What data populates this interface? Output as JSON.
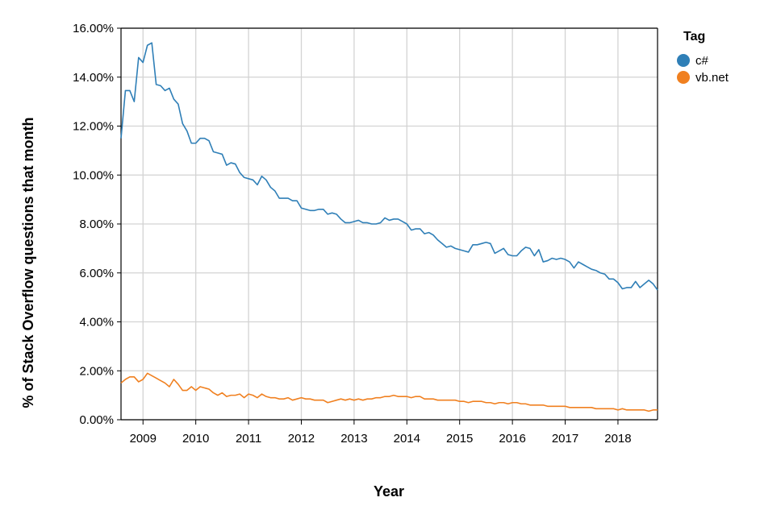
{
  "chart_data": {
    "type": "line",
    "xlabel": "Year",
    "ylabel": "% of Stack Overflow questions that month",
    "x_ticks": [
      "2009",
      "2010",
      "2011",
      "2012",
      "2013",
      "2014",
      "2015",
      "2016",
      "2017",
      "2018"
    ],
    "y_ticks": [
      "0.00%",
      "2.00%",
      "4.00%",
      "6.00%",
      "8.00%",
      "10.00%",
      "12.00%",
      "14.00%",
      "16.00%"
    ],
    "xlim": [
      "2008-08",
      "2018-10"
    ],
    "ylim": [
      0,
      16
    ],
    "grid": true,
    "legend": {
      "title": "Tag",
      "placement": "top-right",
      "entries": [
        {
          "label": "c#",
          "color": "#2f7fb7"
        },
        {
          "label": "vb.net",
          "color": "#f08020"
        }
      ]
    },
    "series": [
      {
        "name": "c#",
        "color": "#2f7fb7",
        "points": [
          [
            "2008-08",
            11.5
          ],
          [
            "2008-09",
            13.45
          ],
          [
            "2008-10",
            13.45
          ],
          [
            "2008-11",
            13.0
          ],
          [
            "2008-12",
            14.8
          ],
          [
            "2009-01",
            14.6
          ],
          [
            "2009-02",
            15.3
          ],
          [
            "2009-03",
            15.4
          ],
          [
            "2009-04",
            13.7
          ],
          [
            "2009-05",
            13.65
          ],
          [
            "2009-06",
            13.45
          ],
          [
            "2009-07",
            13.55
          ],
          [
            "2009-08",
            13.1
          ],
          [
            "2009-09",
            12.9
          ],
          [
            "2009-10",
            12.1
          ],
          [
            "2009-11",
            11.8
          ],
          [
            "2009-12",
            11.3
          ],
          [
            "2010-01",
            11.3
          ],
          [
            "2010-02",
            11.5
          ],
          [
            "2010-03",
            11.5
          ],
          [
            "2010-04",
            11.4
          ],
          [
            "2010-05",
            10.95
          ],
          [
            "2010-06",
            10.9
          ],
          [
            "2010-07",
            10.85
          ],
          [
            "2010-08",
            10.4
          ],
          [
            "2010-09",
            10.5
          ],
          [
            "2010-10",
            10.45
          ],
          [
            "2010-11",
            10.1
          ],
          [
            "2010-12",
            9.9
          ],
          [
            "2011-01",
            9.85
          ],
          [
            "2011-02",
            9.8
          ],
          [
            "2011-03",
            9.6
          ],
          [
            "2011-04",
            9.95
          ],
          [
            "2011-05",
            9.8
          ],
          [
            "2011-06",
            9.5
          ],
          [
            "2011-07",
            9.35
          ],
          [
            "2011-08",
            9.05
          ],
          [
            "2011-09",
            9.05
          ],
          [
            "2011-10",
            9.05
          ],
          [
            "2011-11",
            8.95
          ],
          [
            "2011-12",
            8.95
          ],
          [
            "2012-01",
            8.65
          ],
          [
            "2012-02",
            8.6
          ],
          [
            "2012-03",
            8.55
          ],
          [
            "2012-04",
            8.55
          ],
          [
            "2012-05",
            8.6
          ],
          [
            "2012-06",
            8.6
          ],
          [
            "2012-07",
            8.4
          ],
          [
            "2012-08",
            8.45
          ],
          [
            "2012-09",
            8.4
          ],
          [
            "2012-10",
            8.2
          ],
          [
            "2012-11",
            8.05
          ],
          [
            "2012-12",
            8.05
          ],
          [
            "2013-01",
            8.1
          ],
          [
            "2013-02",
            8.15
          ],
          [
            "2013-03",
            8.05
          ],
          [
            "2013-04",
            8.05
          ],
          [
            "2013-05",
            8.0
          ],
          [
            "2013-06",
            8.0
          ],
          [
            "2013-07",
            8.05
          ],
          [
            "2013-08",
            8.25
          ],
          [
            "2013-09",
            8.15
          ],
          [
            "2013-10",
            8.2
          ],
          [
            "2013-11",
            8.2
          ],
          [
            "2013-12",
            8.1
          ],
          [
            "2014-01",
            8.0
          ],
          [
            "2014-02",
            7.75
          ],
          [
            "2014-03",
            7.8
          ],
          [
            "2014-04",
            7.8
          ],
          [
            "2014-05",
            7.6
          ],
          [
            "2014-06",
            7.65
          ],
          [
            "2014-07",
            7.55
          ],
          [
            "2014-08",
            7.35
          ],
          [
            "2014-09",
            7.2
          ],
          [
            "2014-10",
            7.05
          ],
          [
            "2014-11",
            7.1
          ],
          [
            "2014-12",
            7.0
          ],
          [
            "2015-01",
            6.95
          ],
          [
            "2015-02",
            6.9
          ],
          [
            "2015-03",
            6.85
          ],
          [
            "2015-04",
            7.15
          ],
          [
            "2015-05",
            7.15
          ],
          [
            "2015-06",
            7.2
          ],
          [
            "2015-07",
            7.25
          ],
          [
            "2015-08",
            7.2
          ],
          [
            "2015-09",
            6.8
          ],
          [
            "2015-10",
            6.9
          ],
          [
            "2015-11",
            7.0
          ],
          [
            "2015-12",
            6.75
          ],
          [
            "2016-01",
            6.7
          ],
          [
            "2016-02",
            6.7
          ],
          [
            "2016-03",
            6.9
          ],
          [
            "2016-04",
            7.05
          ],
          [
            "2016-05",
            7.0
          ],
          [
            "2016-06",
            6.7
          ],
          [
            "2016-07",
            6.95
          ],
          [
            "2016-08",
            6.45
          ],
          [
            "2016-09",
            6.5
          ],
          [
            "2016-10",
            6.6
          ],
          [
            "2016-11",
            6.55
          ],
          [
            "2016-12",
            6.6
          ],
          [
            "2017-01",
            6.55
          ],
          [
            "2017-02",
            6.45
          ],
          [
            "2017-03",
            6.2
          ],
          [
            "2017-04",
            6.45
          ],
          [
            "2017-05",
            6.35
          ],
          [
            "2017-06",
            6.25
          ],
          [
            "2017-07",
            6.15
          ],
          [
            "2017-08",
            6.1
          ],
          [
            "2017-09",
            6.0
          ],
          [
            "2017-10",
            5.95
          ],
          [
            "2017-11",
            5.75
          ],
          [
            "2017-12",
            5.75
          ],
          [
            "2018-01",
            5.6
          ],
          [
            "2018-02",
            5.35
          ],
          [
            "2018-03",
            5.4
          ],
          [
            "2018-04",
            5.4
          ],
          [
            "2018-05",
            5.65
          ],
          [
            "2018-06",
            5.4
          ],
          [
            "2018-07",
            5.55
          ],
          [
            "2018-08",
            5.7
          ],
          [
            "2018-09",
            5.55
          ],
          [
            "2018-10",
            5.3
          ]
        ]
      },
      {
        "name": "vb.net",
        "color": "#f08020",
        "points": [
          [
            "2008-08",
            1.5
          ],
          [
            "2008-09",
            1.65
          ],
          [
            "2008-10",
            1.75
          ],
          [
            "2008-11",
            1.75
          ],
          [
            "2008-12",
            1.55
          ],
          [
            "2009-01",
            1.65
          ],
          [
            "2009-02",
            1.9
          ],
          [
            "2009-03",
            1.8
          ],
          [
            "2009-04",
            1.7
          ],
          [
            "2009-05",
            1.6
          ],
          [
            "2009-06",
            1.5
          ],
          [
            "2009-07",
            1.35
          ],
          [
            "2009-08",
            1.65
          ],
          [
            "2009-09",
            1.45
          ],
          [
            "2009-10",
            1.2
          ],
          [
            "2009-11",
            1.2
          ],
          [
            "2009-12",
            1.35
          ],
          [
            "2010-01",
            1.2
          ],
          [
            "2010-02",
            1.35
          ],
          [
            "2010-03",
            1.3
          ],
          [
            "2010-04",
            1.25
          ],
          [
            "2010-05",
            1.1
          ],
          [
            "2010-06",
            1.0
          ],
          [
            "2010-07",
            1.1
          ],
          [
            "2010-08",
            0.95
          ],
          [
            "2010-09",
            1.0
          ],
          [
            "2010-10",
            1.0
          ],
          [
            "2010-11",
            1.05
          ],
          [
            "2010-12",
            0.9
          ],
          [
            "2011-01",
            1.05
          ],
          [
            "2011-02",
            1.0
          ],
          [
            "2011-03",
            0.9
          ],
          [
            "2011-04",
            1.05
          ],
          [
            "2011-05",
            0.95
          ],
          [
            "2011-06",
            0.9
          ],
          [
            "2011-07",
            0.9
          ],
          [
            "2011-08",
            0.85
          ],
          [
            "2011-09",
            0.85
          ],
          [
            "2011-10",
            0.9
          ],
          [
            "2011-11",
            0.8
          ],
          [
            "2011-12",
            0.85
          ],
          [
            "2012-01",
            0.9
          ],
          [
            "2012-02",
            0.85
          ],
          [
            "2012-03",
            0.85
          ],
          [
            "2012-04",
            0.8
          ],
          [
            "2012-05",
            0.8
          ],
          [
            "2012-06",
            0.8
          ],
          [
            "2012-07",
            0.7
          ],
          [
            "2012-08",
            0.75
          ],
          [
            "2012-09",
            0.8
          ],
          [
            "2012-10",
            0.85
          ],
          [
            "2012-11",
            0.8
          ],
          [
            "2012-12",
            0.85
          ],
          [
            "2013-01",
            0.8
          ],
          [
            "2013-02",
            0.85
          ],
          [
            "2013-03",
            0.8
          ],
          [
            "2013-04",
            0.85
          ],
          [
            "2013-05",
            0.85
          ],
          [
            "2013-06",
            0.9
          ],
          [
            "2013-07",
            0.9
          ],
          [
            "2013-08",
            0.95
          ],
          [
            "2013-09",
            0.95
          ],
          [
            "2013-10",
            1.0
          ],
          [
            "2013-11",
            0.95
          ],
          [
            "2013-12",
            0.95
          ],
          [
            "2014-01",
            0.95
          ],
          [
            "2014-02",
            0.9
          ],
          [
            "2014-03",
            0.95
          ],
          [
            "2014-04",
            0.95
          ],
          [
            "2014-05",
            0.85
          ],
          [
            "2014-06",
            0.85
          ],
          [
            "2014-07",
            0.85
          ],
          [
            "2014-08",
            0.8
          ],
          [
            "2014-09",
            0.8
          ],
          [
            "2014-10",
            0.8
          ],
          [
            "2014-11",
            0.8
          ],
          [
            "2014-12",
            0.8
          ],
          [
            "2015-01",
            0.75
          ],
          [
            "2015-02",
            0.75
          ],
          [
            "2015-03",
            0.7
          ],
          [
            "2015-04",
            0.75
          ],
          [
            "2015-05",
            0.75
          ],
          [
            "2015-06",
            0.75
          ],
          [
            "2015-07",
            0.7
          ],
          [
            "2015-08",
            0.7
          ],
          [
            "2015-09",
            0.65
          ],
          [
            "2015-10",
            0.7
          ],
          [
            "2015-11",
            0.7
          ],
          [
            "2015-12",
            0.65
          ],
          [
            "2016-01",
            0.7
          ],
          [
            "2016-02",
            0.7
          ],
          [
            "2016-03",
            0.65
          ],
          [
            "2016-04",
            0.65
          ],
          [
            "2016-05",
            0.6
          ],
          [
            "2016-06",
            0.6
          ],
          [
            "2016-07",
            0.6
          ],
          [
            "2016-08",
            0.6
          ],
          [
            "2016-09",
            0.55
          ],
          [
            "2016-10",
            0.55
          ],
          [
            "2016-11",
            0.55
          ],
          [
            "2016-12",
            0.55
          ],
          [
            "2017-01",
            0.55
          ],
          [
            "2017-02",
            0.5
          ],
          [
            "2017-03",
            0.5
          ],
          [
            "2017-04",
            0.5
          ],
          [
            "2017-05",
            0.5
          ],
          [
            "2017-06",
            0.5
          ],
          [
            "2017-07",
            0.5
          ],
          [
            "2017-08",
            0.45
          ],
          [
            "2017-09",
            0.45
          ],
          [
            "2017-10",
            0.45
          ],
          [
            "2017-11",
            0.45
          ],
          [
            "2017-12",
            0.45
          ],
          [
            "2018-01",
            0.4
          ],
          [
            "2018-02",
            0.45
          ],
          [
            "2018-03",
            0.4
          ],
          [
            "2018-04",
            0.4
          ],
          [
            "2018-05",
            0.4
          ],
          [
            "2018-06",
            0.4
          ],
          [
            "2018-07",
            0.4
          ],
          [
            "2018-08",
            0.35
          ],
          [
            "2018-09",
            0.4
          ],
          [
            "2018-10",
            0.4
          ]
        ]
      }
    ]
  }
}
